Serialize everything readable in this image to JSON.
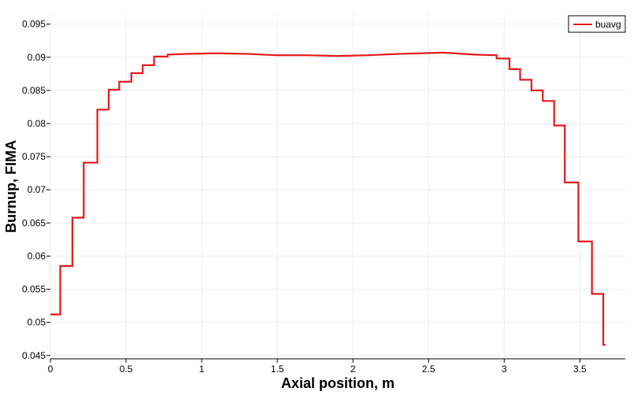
{
  "chart_data": {
    "type": "line",
    "xlabel": "Axial position, m",
    "ylabel": "Burnup, FIMA",
    "xlim": [
      0,
      3.8
    ],
    "ylim": [
      0.0445,
      0.0965
    ],
    "xticks": [
      0,
      0.5,
      1,
      1.5,
      2,
      2.5,
      3,
      3.5
    ],
    "xtick_labels": [
      "0",
      "0.5",
      "1",
      "1.5",
      "2",
      "2.5",
      "3",
      "3.5"
    ],
    "yticks": [
      0.045,
      0.05,
      0.055,
      0.06,
      0.065,
      0.07,
      0.075,
      0.08,
      0.085,
      0.09,
      0.095
    ],
    "ytick_labels": [
      "0.045",
      "0.05",
      "0.055",
      "0.06",
      "0.065",
      "0.07",
      "0.075",
      "0.08",
      "0.085",
      "0.09",
      "0.095"
    ],
    "grid": true,
    "legend_position": "top-right",
    "series": [
      {
        "name": "buavg",
        "color": "#e41a1c",
        "x": [
          0,
          0.065,
          0.065,
          0.145,
          0.145,
          0.22,
          0.22,
          0.31,
          0.31,
          0.385,
          0.385,
          0.455,
          0.455,
          0.535,
          0.535,
          0.61,
          0.61,
          0.685,
          0.685,
          0.775,
          0.775,
          0.9,
          1.1,
          1.3,
          1.5,
          1.7,
          1.9,
          2.1,
          2.3,
          2.6,
          2.8,
          2.95,
          2.95,
          3.035,
          3.035,
          3.105,
          3.105,
          3.18,
          3.18,
          3.255,
          3.255,
          3.33,
          3.33,
          3.4,
          3.4,
          3.49,
          3.49,
          3.58,
          3.58,
          3.655,
          3.655,
          3.67
        ],
        "y": [
          0.0512,
          0.0512,
          0.0585,
          0.0585,
          0.0658,
          0.0658,
          0.0741,
          0.0741,
          0.0821,
          0.0821,
          0.0851,
          0.0851,
          0.0863,
          0.0863,
          0.0876,
          0.0876,
          0.0888,
          0.0888,
          0.0901,
          0.0901,
          0.0904,
          0.0905,
          0.0906,
          0.0905,
          0.0903,
          0.0903,
          0.0902,
          0.0903,
          0.0905,
          0.0907,
          0.0904,
          0.0903,
          0.0898,
          0.0898,
          0.0882,
          0.0882,
          0.0866,
          0.0866,
          0.085,
          0.085,
          0.0834,
          0.0834,
          0.0797,
          0.0797,
          0.0711,
          0.0711,
          0.0622,
          0.0622,
          0.0543,
          0.0543,
          0.0466,
          0.0466
        ]
      }
    ]
  }
}
